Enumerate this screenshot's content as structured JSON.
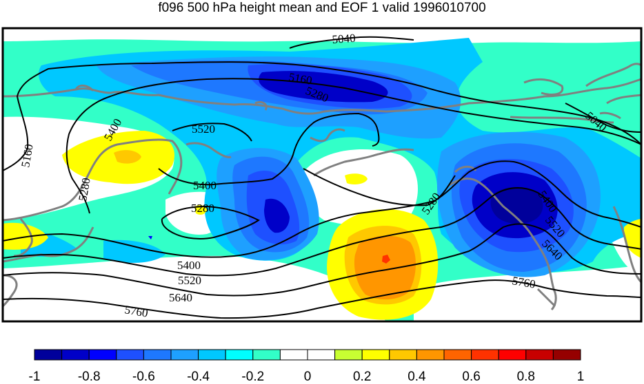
{
  "title": "f096 500 hPa height mean and EOF 1 valid 1996010700",
  "contour_labels": [
    "5040",
    "5160",
    "5280",
    "5040",
    "5400",
    "5520",
    "5160",
    "5280",
    "5400",
    "5280",
    "5280",
    "5400",
    "5520",
    "5640",
    "5400",
    "5520",
    "5640",
    "5760",
    "5760"
  ],
  "colorbar": {
    "colors": [
      "#00009b",
      "#0000c8",
      "#0000ff",
      "#1e50ff",
      "#1e78ff",
      "#1ea0ff",
      "#00c8ff",
      "#00ffff",
      "#32ffc8",
      "#ffffff",
      "#ffffff",
      "#c8ff32",
      "#ffff00",
      "#ffc800",
      "#ff9600",
      "#ff6400",
      "#ff3200",
      "#ff0000",
      "#c80000",
      "#960000"
    ],
    "ticks": [
      "-1",
      "-0.8",
      "-0.6",
      "-0.4",
      "-0.2",
      "0",
      "0.2",
      "0.4",
      "0.6",
      "0.8",
      "1"
    ]
  },
  "fill_colors": {
    "ocean_background": "#32ffc8",
    "light_blue": "#00c8ff",
    "mid_blue": "#1ea0ff",
    "blue": "#1e78ff",
    "deep_blue": "#1e50ff",
    "dark_blue": "#0000c8",
    "navy": "#00009b",
    "white": "#ffffff",
    "yellow": "#ffff00",
    "gold": "#ffc800",
    "orange": "#ff9600",
    "red": "#ff3200"
  }
}
